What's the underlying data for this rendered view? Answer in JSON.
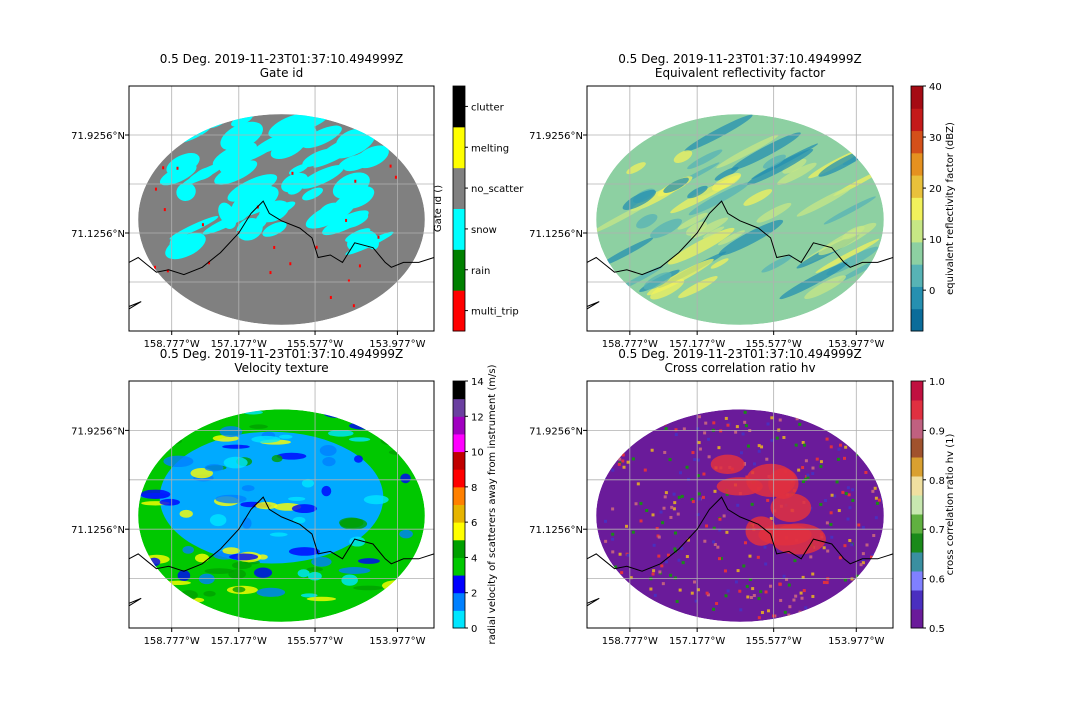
{
  "chart_data": [
    {
      "type": "heatmap",
      "title": "0.5 Deg. 2019-11-23T01:37:10.494999Z",
      "subtitle": "Gate id",
      "x_ticks": [
        "158.777°W",
        "157.177°W",
        "155.577°W",
        "153.977°W"
      ],
      "y_ticks": [
        "71.9256°N",
        "71.1256°N"
      ],
      "colorbar": {
        "label": "Gate id ()",
        "categories": [
          "multi_trip",
          "rain",
          "snow",
          "no_scatter",
          "melting",
          "clutter"
        ],
        "colors": [
          "#ff0000",
          "#008000",
          "#00ffff",
          "#808080",
          "#ffff00",
          "#000000"
        ]
      },
      "grid": true
    },
    {
      "type": "heatmap",
      "title": "0.5 Deg. 2019-11-23T01:37:10.494999Z",
      "subtitle": "Equivalent reflectivity factor",
      "x_ticks": [
        "158.777°W",
        "157.177°W",
        "155.577°W",
        "153.977°W"
      ],
      "y_ticks": [
        "71.9256°N",
        "71.1256°N"
      ],
      "colorbar": {
        "label": "equivalent reflectivity factor (dBZ)",
        "range": [
          -8,
          40
        ],
        "ticks": [
          "0",
          "10",
          "20",
          "30",
          "40"
        ],
        "colors": [
          "#0a6c9a",
          "#2690b0",
          "#57b3b5",
          "#8dd0a2",
          "#c7e785",
          "#f2f25c",
          "#e9c13b",
          "#e59120",
          "#d4501a",
          "#c41a1a",
          "#a50b14"
        ]
      },
      "grid": true
    },
    {
      "type": "heatmap",
      "title": "0.5 Deg. 2019-11-23T01:37:10.494999Z",
      "subtitle": "Velocity texture",
      "x_ticks": [
        "158.777°W",
        "157.177°W",
        "155.577°W",
        "153.977°W"
      ],
      "y_ticks": [
        "71.9256°N",
        "71.1256°N"
      ],
      "colorbar": {
        "label": "radial velocity of scatterers away from instrument (m/s)",
        "range": [
          0,
          14
        ],
        "ticks": [
          "0",
          "2",
          "4",
          "6",
          "8",
          "10",
          "12",
          "14"
        ],
        "colors": [
          "#00e6ff",
          "#0080ff",
          "#0000ff",
          "#00c800",
          "#00a000",
          "#ffff00",
          "#e6b400",
          "#ff8000",
          "#ff0000",
          "#c00000",
          "#ff00ff",
          "#a000c0",
          "#6a3fa0",
          "#000000"
        ]
      },
      "grid": true
    },
    {
      "type": "heatmap",
      "title": "0.5 Deg. 2019-11-23T01:37:10.494999Z",
      "subtitle": "Cross correlation ratio hv",
      "x_ticks": [
        "158.777°W",
        "157.177°W",
        "155.577°W",
        "153.977°W"
      ],
      "y_ticks": [
        "71.9256°N",
        "71.1256°N"
      ],
      "colorbar": {
        "label": "cross correlation ratio hv (1)",
        "range": [
          0.5,
          1.0
        ],
        "ticks": [
          "0.5",
          "0.6",
          "0.7",
          "0.8",
          "0.9",
          "1.0"
        ],
        "colors": [
          "#6a1b9a",
          "#4a2fbf",
          "#8080ff",
          "#3a8fa0",
          "#1a8a1a",
          "#60b040",
          "#c8e8b0",
          "#f0e0a0",
          "#d9a030",
          "#a0522d",
          "#c06080",
          "#e03040",
          "#c01040"
        ]
      },
      "grid": true
    }
  ]
}
